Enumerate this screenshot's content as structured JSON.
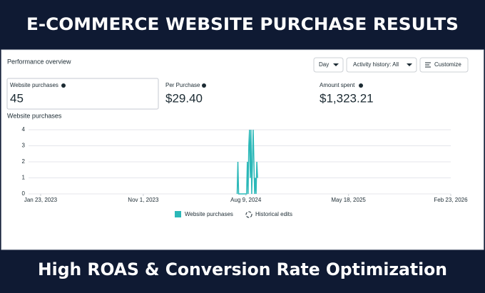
{
  "header": {
    "title": "E-COMMERCE WEBSITE PURCHASE RESULTS"
  },
  "panel": {
    "title": "Performance overview",
    "controls": [
      "Day",
      "Activity history: All",
      "Customize"
    ],
    "metrics": [
      {
        "label": "Website purchases",
        "value": "45"
      },
      {
        "label": "Per Purchase",
        "value": "$29.40"
      },
      {
        "label": "Amount spent",
        "value": "$1,323.21"
      }
    ]
  },
  "chart_data": {
    "type": "line",
    "title": "Website purchases",
    "x": [
      "2024-07-16",
      "2024-07-18",
      "2024-07-20",
      "2024-08-11",
      "2024-08-13",
      "2024-08-15",
      "2024-08-17",
      "2024-08-19",
      "2024-08-21",
      "2024-08-23",
      "2024-08-25",
      "2024-08-27",
      "2024-08-29",
      "2024-08-31",
      "2024-09-02",
      "2024-09-04",
      "2024-09-06",
      "2024-09-08",
      "2024-09-10"
    ],
    "series": [
      {
        "name": "Website purchases",
        "color": "#2bb8b8",
        "values": [
          0,
          2,
          0,
          0,
          2,
          0,
          3,
          4,
          1,
          4,
          0,
          2,
          4,
          2,
          0,
          1,
          0,
          2,
          1
        ]
      }
    ],
    "annotations": [
      "Historical edits"
    ],
    "xlim": [
      "2023-01-23",
      "2026-02-23"
    ],
    "xticks": [
      {
        "value": "2023-01-23",
        "label": "Jan 23, 2023"
      },
      {
        "value": "2023-11-01",
        "label": "Nov 1, 2023"
      },
      {
        "value": "2024-08-09",
        "label": "Aug 9, 2024"
      },
      {
        "value": "2025-05-18",
        "label": "May 18, 2025"
      },
      {
        "value": "2026-02-23",
        "label": "Feb 23, 2026"
      }
    ],
    "ylim": [
      0,
      4
    ],
    "yticks": [
      0,
      1,
      2,
      3,
      4
    ],
    "grid": true
  },
  "footer": {
    "title": "High ROAS & Conversion Rate Optimization"
  }
}
